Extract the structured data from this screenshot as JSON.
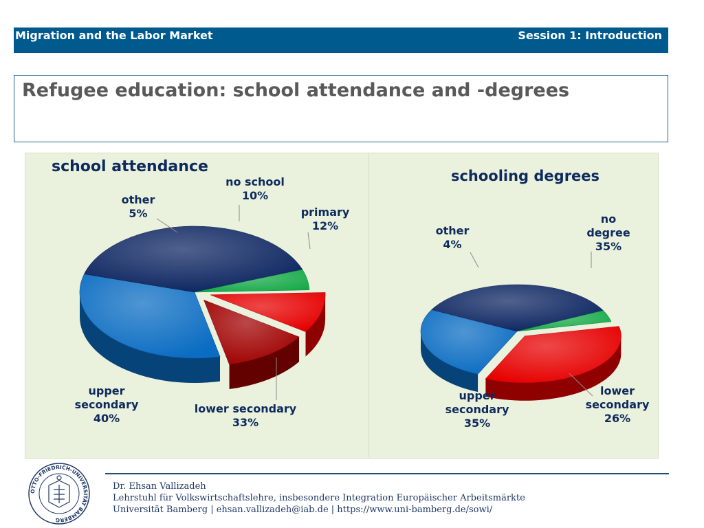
{
  "header": {
    "left": "Migration and the Labor Market",
    "right": "Session 1: Introduction"
  },
  "title": "Refugee education: school attendance and -degrees",
  "chart_data": [
    {
      "type": "pie",
      "title": "school attendance",
      "slices": [
        {
          "label_lines": [
            "no school"
          ],
          "value": 10,
          "value_text": "10%",
          "color": "#E60000",
          "exploded": true
        },
        {
          "label_lines": [
            "primary"
          ],
          "value": 12,
          "value_text": "12%",
          "color": "#A00000",
          "exploded": true
        },
        {
          "label_lines": [
            "lower secondary"
          ],
          "value": 33,
          "value_text": "33%",
          "color": "#0A6CC2",
          "exploded": false
        },
        {
          "label_lines": [
            "upper",
            "secondary"
          ],
          "value": 40,
          "value_text": "40%",
          "color": "#0B2460",
          "exploded": false
        },
        {
          "label_lines": [
            "other"
          ],
          "value": 5,
          "value_text": "5%",
          "color": "#18AA4A",
          "exploded": false
        }
      ]
    },
    {
      "type": "pie",
      "title": "schooling degrees",
      "slices": [
        {
          "label_lines": [
            "no",
            "degree"
          ],
          "value": 35,
          "value_text": "35%",
          "color": "#E60000",
          "exploded": true
        },
        {
          "label_lines": [
            "lower",
            "secondary"
          ],
          "value": 26,
          "value_text": "26%",
          "color": "#0A6CC2",
          "exploded": false
        },
        {
          "label_lines": [
            "upper",
            "secondary"
          ],
          "value": 35,
          "value_text": "35%",
          "color": "#0B2460",
          "exploded": false
        },
        {
          "label_lines": [
            "other"
          ],
          "value": 4,
          "value_text": "4%",
          "color": "#18AA4A",
          "exploded": false
        }
      ]
    }
  ],
  "footer": {
    "name": "Dr. Ehsan Vallizadeh",
    "chair": "Lehrstuhl für Volkswirtschaftslehre, insbesondere Integration Europäischer Arbeitsmärkte",
    "contact": "Universität Bamberg | ehsan.vallizadeh@iab.de | https://www.uni-bamberg.de/sowi/",
    "logo_text": "OTTO-FRIEDRICH-UNIVERSITÄT BAMBERG"
  }
}
